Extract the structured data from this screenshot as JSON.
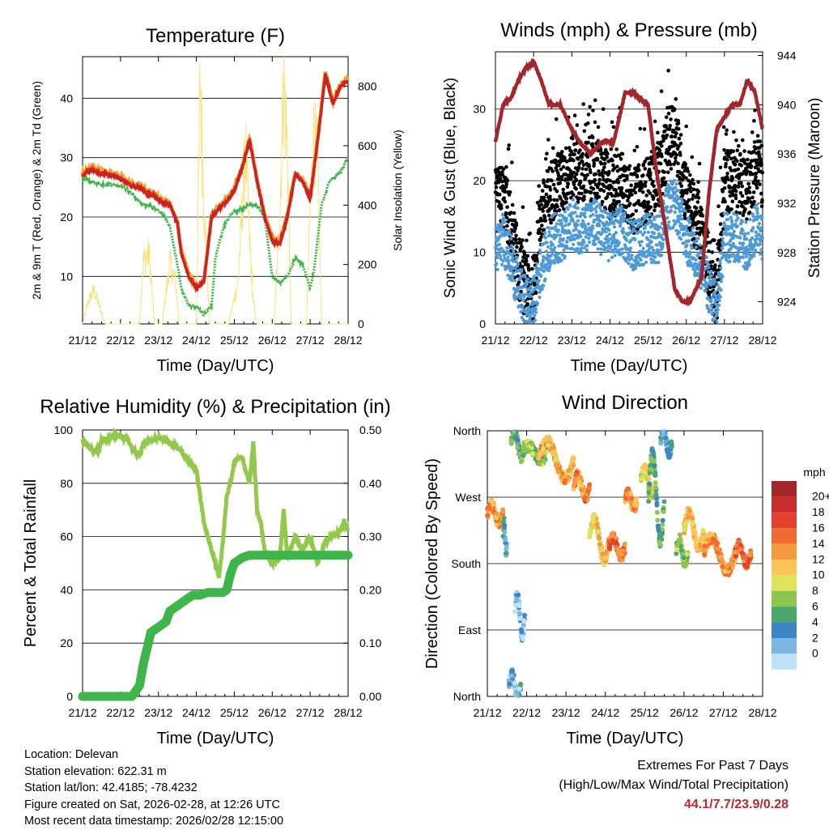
{
  "chart_data": [
    {
      "type": "line",
      "title": "Temperature (F)",
      "xlabel": "Time (Day/UTC)",
      "ylabel": "2m & 9m T (Red, Orange) & 2m Td (Green)",
      "y2label": "Solar Insolation (Yellow)",
      "x_ticks": [
        "21/12",
        "22/12",
        "23/12",
        "24/12",
        "25/12",
        "26/12",
        "27/12",
        "28/12"
      ],
      "ylim": [
        2,
        47
      ],
      "y_ticks": [
        10,
        20,
        30,
        40
      ],
      "y2lim": [
        0,
        900
      ],
      "y2_ticks": [
        0,
        200,
        400,
        600,
        800
      ],
      "series": [
        {
          "name": "2m T",
          "color": "#cc2222",
          "x": [
            0,
            0.1,
            0.2,
            0.3,
            0.5,
            0.7,
            0.9,
            1.1,
            1.3,
            1.5,
            1.7,
            1.9,
            2.1,
            2.3,
            2.5,
            2.6,
            2.8,
            3.0,
            3.2,
            3.4,
            3.6,
            3.8,
            4.0,
            4.2,
            4.4,
            4.6,
            4.8,
            5.0,
            5.2,
            5.4,
            5.6,
            5.8,
            6.0,
            6.2,
            6.4,
            6.6,
            6.8,
            7.0
          ],
          "values": [
            27,
            27.5,
            28,
            27.8,
            27.3,
            27,
            26.8,
            26,
            25.2,
            25,
            24,
            23.5,
            22.5,
            22,
            19,
            14,
            10,
            8,
            9,
            20,
            21.5,
            22.5,
            24.5,
            28,
            33,
            26,
            20,
            16,
            15.5,
            20,
            27,
            26,
            23,
            33,
            44,
            39,
            42,
            43
          ]
        },
        {
          "name": "9m T",
          "color": "#f3a33a",
          "x": [
            0,
            0.1,
            0.2,
            0.3,
            0.5,
            0.7,
            0.9,
            1.1,
            1.3,
            1.5,
            1.7,
            1.9,
            2.1,
            2.3,
            2.5,
            2.6,
            2.8,
            3.0,
            3.2,
            3.4,
            3.6,
            3.8,
            4.0,
            4.2,
            4.4,
            4.6,
            4.8,
            5.0,
            5.2,
            5.4,
            5.6,
            5.8,
            6.0,
            6.2,
            6.4,
            6.6,
            6.8,
            7.0
          ],
          "values": [
            27.3,
            27.8,
            28.3,
            28.1,
            27.6,
            27.3,
            27.1,
            26.3,
            25.5,
            25.3,
            24.3,
            23.8,
            22.8,
            22.3,
            19.3,
            14.3,
            10.3,
            8.3,
            9.3,
            20.3,
            21.8,
            22.8,
            24.8,
            28.3,
            33.3,
            26.3,
            20.3,
            16.3,
            15.8,
            20.3,
            27.3,
            26.3,
            23.3,
            33.3,
            44.5,
            39.3,
            42.3,
            43.3
          ]
        },
        {
          "name": "2m Td",
          "color": "#3db54a",
          "x": [
            0,
            0.2,
            0.5,
            0.8,
            1.1,
            1.3,
            1.5,
            1.7,
            1.9,
            2.1,
            2.3,
            2.5,
            2.6,
            2.8,
            3.0,
            3.2,
            3.4,
            3.5,
            3.7,
            3.9,
            4.2,
            4.4,
            4.6,
            4.8,
            5.0,
            5.2,
            5.4,
            5.6,
            5.8,
            6.0,
            6.1,
            6.3,
            6.5,
            6.8,
            7.0
          ],
          "values": [
            26.5,
            26,
            25.5,
            25.5,
            25,
            24,
            22.5,
            22,
            21.5,
            20.5,
            18.5,
            12,
            8,
            5,
            5,
            3.5,
            5,
            13,
            18,
            20.5,
            21.5,
            22,
            22,
            20,
            10,
            9,
            10,
            13,
            12,
            8,
            11,
            22,
            26,
            27.5,
            30
          ]
        }
      ],
      "solar_insolation": {
        "name": "Solar Insolation",
        "color": "#f8e27a",
        "x": [
          0,
          0.15,
          0.3,
          0.45,
          0.6,
          1.5,
          1.6,
          1.75,
          1.9,
          2.1,
          2.3,
          2.45,
          2.55,
          2.7,
          3.0,
          3.1,
          3.2,
          3.35,
          3.5,
          3.6,
          3.85,
          4.1,
          4.3,
          4.4,
          4.5,
          4.6,
          5.05,
          5.2,
          5.3,
          5.4,
          5.5,
          5.9,
          6.0,
          6.1,
          6.2,
          6.3,
          6.5,
          7.0
        ],
        "values": [
          0,
          80,
          120,
          60,
          0,
          0,
          220,
          250,
          0,
          0,
          220,
          150,
          0,
          0,
          0,
          880,
          420,
          0,
          0,
          0,
          0,
          150,
          620,
          300,
          80,
          0,
          0,
          380,
          880,
          600,
          0,
          0,
          400,
          680,
          550,
          0,
          0,
          0
        ]
      }
    },
    {
      "type": "line",
      "title": "Winds (mph) & Pressure (mb)",
      "xlabel": "Time (Day/UTC)",
      "ylabel": "Sonic Wind & Gust (Blue, Black)",
      "y2label": "Station Pressure (Maroon)",
      "x_ticks": [
        "21/12",
        "22/12",
        "23/12",
        "24/12",
        "25/12",
        "26/12",
        "27/12",
        "28/12"
      ],
      "ylim": [
        0,
        38
      ],
      "y_ticks": [
        0,
        10,
        20,
        30
      ],
      "y2lim": [
        922.2,
        944.3
      ],
      "y2_ticks": [
        924,
        928,
        932,
        936,
        940,
        944
      ],
      "series": [
        {
          "name": "Sonic Wind",
          "color": "#4d9ad6",
          "x": [
            0,
            0.2,
            0.4,
            0.6,
            0.8,
            1.0,
            1.2,
            1.5,
            1.8,
            2.0,
            2.3,
            2.6,
            3.0,
            3.3,
            3.6,
            4.0,
            4.3,
            4.5,
            4.7,
            5.0,
            5.3,
            5.6,
            5.8,
            6.0,
            6.3,
            6.6,
            6.9,
            7.0
          ],
          "values": [
            10,
            12,
            9,
            5,
            3,
            3,
            8,
            12,
            12,
            14,
            13,
            14,
            12,
            13,
            11,
            12,
            12,
            16,
            17,
            12,
            9,
            5,
            2,
            12,
            12,
            11,
            14,
            12
          ]
        },
        {
          "name": "Gust",
          "color": "#000000",
          "x": [
            0,
            0.2,
            0.4,
            0.6,
            0.8,
            1.0,
            1.2,
            1.5,
            1.8,
            2.0,
            2.3,
            2.6,
            3.0,
            3.3,
            3.6,
            4.0,
            4.3,
            4.5,
            4.7,
            5.0,
            5.3,
            5.6,
            5.8,
            6.0,
            6.3,
            6.6,
            6.9,
            7.0
          ],
          "values": [
            17,
            18,
            14,
            8,
            5,
            5,
            15,
            19,
            20,
            22,
            21,
            22,
            19,
            20,
            17,
            19,
            21,
            25,
            27,
            18,
            14,
            8,
            4,
            20,
            20,
            19,
            23,
            20
          ]
        },
        {
          "name": "Station Pressure",
          "color": "#a3262a",
          "x": [
            0,
            0.2,
            0.4,
            0.6,
            0.8,
            1.0,
            1.2,
            1.4,
            1.7,
            2.0,
            2.2,
            2.5,
            2.8,
            3.1,
            3.4,
            3.6,
            3.8,
            4.0,
            4.2,
            4.5,
            4.7,
            4.9,
            5.1,
            5.4,
            5.6,
            5.8,
            6.0,
            6.2,
            6.4,
            6.6,
            6.8,
            7.0
          ],
          "values": [
            937,
            940,
            940.5,
            942,
            943,
            943.5,
            942,
            940,
            940,
            938,
            937,
            936,
            937,
            937,
            941,
            941,
            940.5,
            940,
            935,
            929,
            925,
            924,
            924,
            926,
            933,
            938,
            939,
            940,
            940,
            942,
            941,
            938
          ]
        }
      ]
    },
    {
      "type": "line",
      "title": "Relative Humidity (%) & Precipitation (in)",
      "xlabel": "Time (Day/UTC)",
      "ylabel": "Percent & Total Rainfall",
      "x_ticks": [
        "21/12",
        "22/12",
        "23/12",
        "24/12",
        "25/12",
        "26/12",
        "27/12",
        "28/12"
      ],
      "ylim": [
        0,
        100
      ],
      "y_ticks": [
        0,
        20,
        40,
        60,
        80,
        100
      ],
      "y2lim": [
        0,
        0.5
      ],
      "y2_ticks": [
        "0.00",
        "0.10",
        "0.20",
        "0.30",
        "0.40",
        "0.50"
      ],
      "series": [
        {
          "name": "Relative Humidity",
          "color": "#93c94b",
          "x": [
            0,
            0.1,
            0.2,
            0.4,
            0.5,
            0.7,
            0.9,
            1.1,
            1.2,
            1.3,
            1.5,
            1.6,
            1.8,
            2.0,
            2.2,
            2.4,
            2.6,
            2.8,
            3.0,
            3.1,
            3.2,
            3.4,
            3.6,
            3.7,
            3.8,
            3.9,
            4.0,
            4.2,
            4.3,
            4.4,
            4.5,
            4.6,
            4.7,
            4.8,
            5.0,
            5.2,
            5.3,
            5.4,
            5.6,
            5.8,
            6.0,
            6.2,
            6.4,
            6.6,
            6.8,
            6.9,
            7.0
          ],
          "values": [
            96,
            95,
            93,
            92,
            96,
            97,
            98,
            97,
            96,
            93,
            90,
            95,
            96,
            97,
            96,
            94,
            92,
            88,
            85,
            75,
            65,
            55,
            45,
            58,
            75,
            80,
            88,
            90,
            85,
            80,
            95,
            70,
            65,
            55,
            50,
            52,
            70,
            52,
            60,
            55,
            60,
            50,
            58,
            60,
            62,
            66,
            62
          ]
        },
        {
          "name": "Total Precipitation",
          "color": "#3db54a",
          "x": [
            0,
            0.2,
            0.4,
            0.6,
            0.8,
            1.0,
            1.1,
            1.3,
            1.5,
            1.6,
            1.8,
            2.0,
            2.2,
            2.3,
            2.5,
            2.7,
            2.9,
            3.1,
            3.3,
            3.5,
            3.6,
            3.7,
            3.8,
            3.9,
            4.0,
            4.2,
            4.4,
            4.6,
            4.8,
            5.0,
            5.2,
            5.4,
            5.6,
            5.8,
            6.0,
            6.2,
            6.4,
            6.6,
            6.8,
            7.0
          ],
          "values": [
            0,
            0,
            0,
            0,
            0,
            0,
            0,
            0,
            0.02,
            0.06,
            0.12,
            0.13,
            0.14,
            0.16,
            0.17,
            0.18,
            0.19,
            0.19,
            0.195,
            0.195,
            0.195,
            0.195,
            0.2,
            0.23,
            0.25,
            0.26,
            0.265,
            0.265,
            0.265,
            0.265,
            0.265,
            0.265,
            0.265,
            0.265,
            0.265,
            0.265,
            0.265,
            0.265,
            0.265,
            0.265
          ]
        }
      ]
    },
    {
      "type": "scatter",
      "title": "Wind Direction",
      "xlabel": "Time (Day/UTC)",
      "ylabel": "Direction (Colored By Speed)",
      "x_ticks": [
        "21/12",
        "22/12",
        "23/12",
        "24/12",
        "25/12",
        "26/12",
        "27/12",
        "28/12"
      ],
      "y_ticks": [
        "North",
        "East",
        "South",
        "West",
        "North"
      ],
      "ylim": [
        0,
        360
      ],
      "colorbar": {
        "title": "mph",
        "labels": [
          "20+",
          "18",
          "16",
          "14",
          "12",
          "10",
          "8",
          "6",
          "4",
          "2",
          "0"
        ],
        "colors": [
          "#a3262a",
          "#c92b2b",
          "#e2412e",
          "#f06a32",
          "#f59a3e",
          "#fbc456",
          "#dbe45a",
          "#8ec54f",
          "#4aa66b",
          "#3d86c6",
          "#7cb7e4",
          "#bfe3f6"
        ]
      },
      "clusters": [
        {
          "x": [
            0.0,
            0.4
          ],
          "dir": [
            235,
            260
          ],
          "speed": 14
        },
        {
          "x": [
            0.4,
            0.5
          ],
          "dir": [
            195,
            235
          ],
          "speed": 4
        },
        {
          "x": [
            0.55,
            0.85
          ],
          "dir": [
            0,
            30
          ],
          "speed": 3
        },
        {
          "x": [
            0.7,
            0.95
          ],
          "dir": [
            80,
            140
          ],
          "speed": 2
        },
        {
          "x": [
            0.6,
            0.95
          ],
          "dir": [
            325,
            360
          ],
          "speed": 6
        },
        {
          "x": [
            0.9,
            1.5
          ],
          "dir": [
            320,
            340
          ],
          "speed": 8
        },
        {
          "x": [
            1.3,
            2.2
          ],
          "dir": [
            295,
            345
          ],
          "speed": 13
        },
        {
          "x": [
            2.2,
            2.6
          ],
          "dir": [
            270,
            300
          ],
          "speed": 15
        },
        {
          "x": [
            2.6,
            3.1
          ],
          "dir": [
            185,
            240
          ],
          "speed": 12
        },
        {
          "x": [
            3.1,
            3.5
          ],
          "dir": [
            190,
            215
          ],
          "speed": 16
        },
        {
          "x": [
            3.5,
            3.8
          ],
          "dir": [
            255,
            275
          ],
          "speed": 14
        },
        {
          "x": [
            3.9,
            4.3
          ],
          "dir": [
            275,
            310
          ],
          "speed": 10
        },
        {
          "x": [
            4.1,
            4.5
          ],
          "dir": [
            210,
            330
          ],
          "speed": 6
        },
        {
          "x": [
            4.4,
            4.7
          ],
          "dir": [
            330,
            360
          ],
          "speed": 4
        },
        {
          "x": [
            4.8,
            5.1
          ],
          "dir": [
            180,
            215
          ],
          "speed": 8
        },
        {
          "x": [
            5.0,
            5.5
          ],
          "dir": [
            200,
            250
          ],
          "speed": 12
        },
        {
          "x": [
            5.5,
            6.3
          ],
          "dir": [
            170,
            215
          ],
          "speed": 14
        },
        {
          "x": [
            6.3,
            6.7
          ],
          "dir": [
            180,
            205
          ],
          "speed": 16
        }
      ]
    }
  ],
  "footer": {
    "location": "Location: Delevan",
    "elevation": "Station elevation: 622.31 m",
    "latlon": "Station lat/lon: 42.4185; -78.4232",
    "created": "Figure created on Sat, 2026-02-28, at 12:26 UTC",
    "recent": "Most recent data timestamp: 2026/02/28 12:15:00"
  },
  "extremes": {
    "title": "Extremes For Past 7 Days",
    "subtitle": "(High/Low/Max Wind/Total Precipitation)",
    "values": "44.1/7.7/23.9/0.28"
  }
}
